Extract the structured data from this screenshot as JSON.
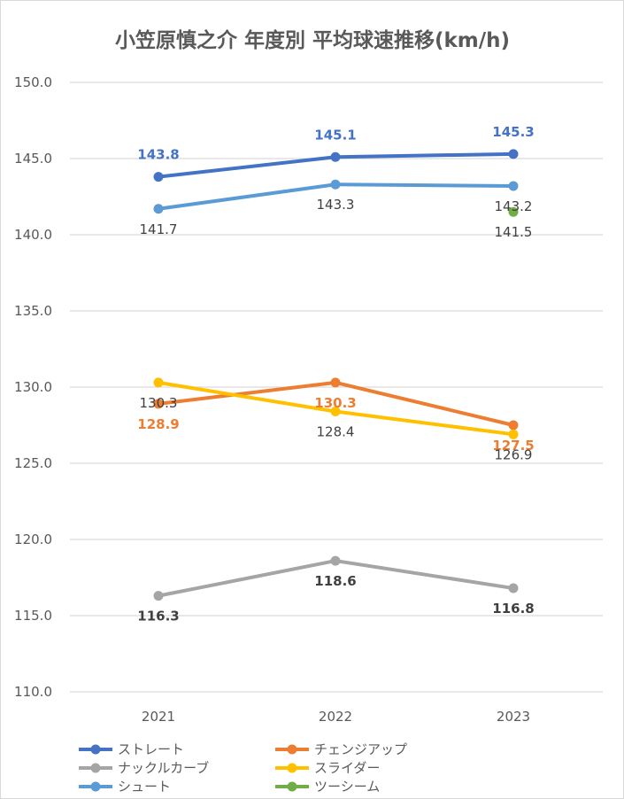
{
  "chart_data": {
    "type": "line",
    "title": "小笠原慎之介 年度別 平均球速推移(km/h)",
    "xlabel": "",
    "ylabel": "",
    "categories": [
      "2021",
      "2022",
      "2023"
    ],
    "ylim": [
      110.0,
      150.0
    ],
    "y_ticks": [
      "110.0",
      "115.0",
      "120.0",
      "125.0",
      "130.0",
      "135.0",
      "140.0",
      "145.0",
      "150.0"
    ],
    "grid": true,
    "legend_position": "bottom",
    "series": [
      {
        "name": "ストレート",
        "values": [
          143.8,
          145.1,
          145.3
        ],
        "color": "#4472c4",
        "labels": [
          "143.8",
          "145.1",
          "145.3"
        ],
        "label_color": "#4472c4",
        "label_bold": true,
        "label_pos": [
          "above",
          "above",
          "above"
        ]
      },
      {
        "name": "チェンジアップ",
        "values": [
          128.9,
          130.3,
          127.5
        ],
        "color": "#ed7d31",
        "labels": [
          "128.9",
          "130.3",
          "127.5"
        ],
        "label_color": "#ed7d31",
        "label_bold": true,
        "label_pos": [
          "below",
          "below",
          "below"
        ]
      },
      {
        "name": "ナックルカーブ",
        "values": [
          116.3,
          118.6,
          116.8
        ],
        "color": "#a5a5a5",
        "labels": [
          "116.3",
          "118.6",
          "116.8"
        ],
        "label_color": "#404040",
        "label_bold": true,
        "label_pos": [
          "below",
          "below",
          "below"
        ]
      },
      {
        "name": "スライダー",
        "values": [
          130.3,
          128.4,
          126.9
        ],
        "color": "#ffc000",
        "labels": [
          "130.3",
          "128.4",
          "126.9"
        ],
        "label_color": "#404040",
        "label_bold": false,
        "label_pos": [
          "below",
          "below",
          "below"
        ]
      },
      {
        "name": "シュート",
        "values": [
          141.7,
          143.3,
          143.2
        ],
        "color": "#5b9bd5",
        "labels": [
          "141.7",
          "143.3",
          "143.2"
        ],
        "label_color": "#404040",
        "label_bold": false,
        "label_pos": [
          "below",
          "below",
          "below"
        ]
      },
      {
        "name": "ツーシーム",
        "values": [
          null,
          null,
          141.5
        ],
        "color": "#70ad47",
        "labels": [
          "",
          "",
          "141.5"
        ],
        "label_color": "#404040",
        "label_bold": false,
        "label_pos": [
          "below",
          "below",
          "below"
        ]
      }
    ]
  }
}
